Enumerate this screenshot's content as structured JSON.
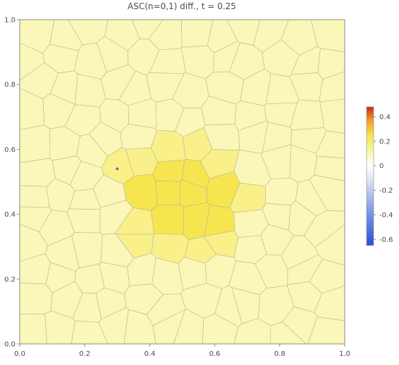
{
  "chart_data": {
    "type": "heatmap",
    "title": "ASC(n=0,1) diff., t = 0.25",
    "xlim": [
      0,
      1
    ],
    "ylim": [
      0,
      1
    ],
    "x_ticks": [
      "0.0",
      "0.2",
      "0.4",
      "0.6",
      "0.8",
      "1.0"
    ],
    "y_ticks": [
      "0.0",
      "0.2",
      "0.4",
      "0.6",
      "0.8",
      "1.0"
    ],
    "grid": false,
    "colorbar": {
      "range": [
        -0.65,
        0.48
      ],
      "ticks": [
        "0.4",
        "0.2",
        "0",
        "-0.2",
        "-0.4",
        "-0.6"
      ],
      "placement": "right"
    },
    "field": {
      "background_value": 0.08,
      "hotspot_center": [
        0.5,
        0.45
      ],
      "hotspot_peak_value": 0.22,
      "ring_value": 0.13,
      "outlier_point": [
        0.3,
        0.54
      ]
    },
    "colors": {
      "background": "#fbf7b8",
      "ring": "#f9f089",
      "hotspot": "#f6e54f",
      "edge": "#b9b5a0",
      "outlier": "#4b5cc4"
    }
  }
}
